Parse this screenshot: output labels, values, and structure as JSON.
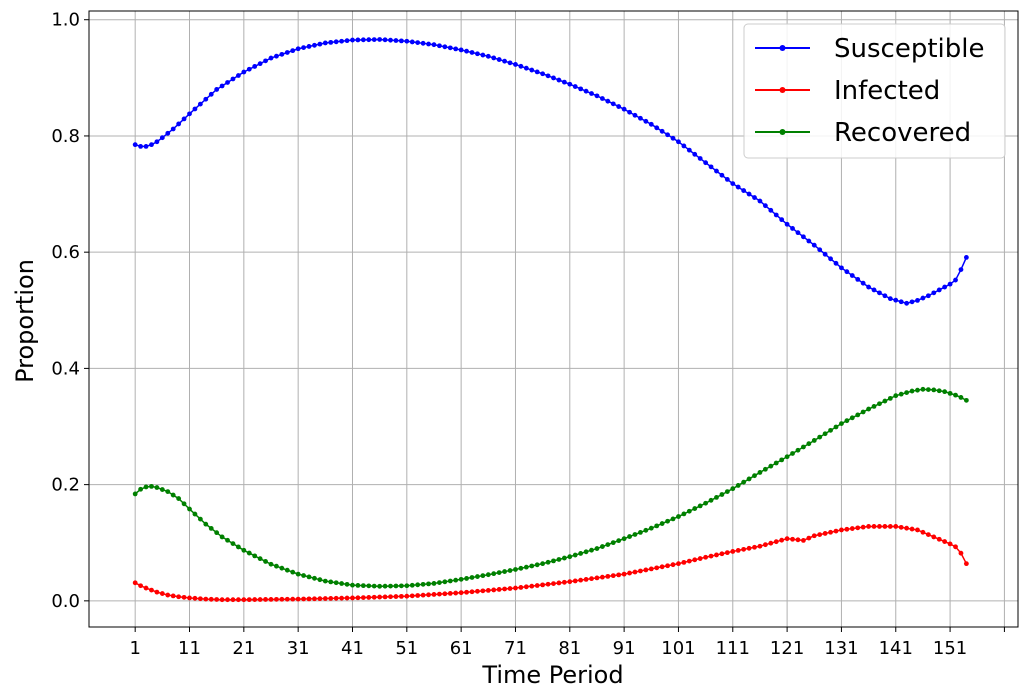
{
  "chart_data": {
    "type": "line",
    "xlabel": "Time Period",
    "ylabel": "Proportion",
    "xlim": [
      -7.5,
      163.5
    ],
    "ylim": [
      -0.045,
      1.015
    ],
    "x_ticks": [
      1,
      11,
      21,
      31,
      41,
      51,
      61,
      71,
      81,
      91,
      101,
      111,
      121,
      131,
      141,
      151,
      161
    ],
    "x_tick_labels": [
      "1",
      "11",
      "21",
      "31",
      "41",
      "51",
      "61",
      "71",
      "81",
      "91",
      "101",
      "111",
      "121",
      "131",
      "141",
      "151",
      ""
    ],
    "y_ticks": [
      0.0,
      0.2,
      0.4,
      0.6,
      0.8,
      1.0
    ],
    "y_tick_labels": [
      "0.0",
      "0.2",
      "0.4",
      "0.6",
      "0.8",
      "1.0"
    ],
    "grid": true,
    "legend_position": "upper right",
    "x_start": 1,
    "x_end": 154,
    "series": [
      {
        "name": "Susceptible",
        "color": "#0000ff",
        "keypoints": [
          [
            1,
            0.785
          ],
          [
            2,
            0.782
          ],
          [
            3,
            0.782
          ],
          [
            4,
            0.785
          ],
          [
            5,
            0.79
          ],
          [
            6,
            0.797
          ],
          [
            8,
            0.812
          ],
          [
            11,
            0.838
          ],
          [
            16,
            0.88
          ],
          [
            21,
            0.91
          ],
          [
            26,
            0.934
          ],
          [
            31,
            0.95
          ],
          [
            36,
            0.96
          ],
          [
            41,
            0.965
          ],
          [
            46,
            0.966
          ],
          [
            51,
            0.963
          ],
          [
            56,
            0.957
          ],
          [
            61,
            0.948
          ],
          [
            66,
            0.937
          ],
          [
            71,
            0.923
          ],
          [
            76,
            0.907
          ],
          [
            81,
            0.889
          ],
          [
            86,
            0.869
          ],
          [
            91,
            0.846
          ],
          [
            96,
            0.82
          ],
          [
            101,
            0.79
          ],
          [
            106,
            0.754
          ],
          [
            111,
            0.718
          ],
          [
            116,
            0.688
          ],
          [
            121,
            0.648
          ],
          [
            126,
            0.612
          ],
          [
            131,
            0.573
          ],
          [
            136,
            0.54
          ],
          [
            140,
            0.52
          ],
          [
            143,
            0.512
          ],
          [
            145,
            0.517
          ],
          [
            147,
            0.525
          ],
          [
            149,
            0.535
          ],
          [
            151,
            0.545
          ],
          [
            152,
            0.552
          ],
          [
            153,
            0.57
          ],
          [
            154,
            0.591
          ]
        ]
      },
      {
        "name": "Infected",
        "color": "#ff0000",
        "keypoints": [
          [
            1,
            0.031
          ],
          [
            2,
            0.026
          ],
          [
            3,
            0.022
          ],
          [
            5,
            0.015
          ],
          [
            7,
            0.01
          ],
          [
            9,
            0.007
          ],
          [
            11,
            0.005
          ],
          [
            14,
            0.003
          ],
          [
            17,
            0.002
          ],
          [
            21,
            0.002
          ],
          [
            31,
            0.003
          ],
          [
            41,
            0.005
          ],
          [
            51,
            0.008
          ],
          [
            61,
            0.014
          ],
          [
            71,
            0.022
          ],
          [
            81,
            0.033
          ],
          [
            91,
            0.046
          ],
          [
            101,
            0.064
          ],
          [
            106,
            0.075
          ],
          [
            111,
            0.085
          ],
          [
            116,
            0.094
          ],
          [
            121,
            0.107
          ],
          [
            124,
            0.104
          ],
          [
            126,
            0.112
          ],
          [
            131,
            0.122
          ],
          [
            136,
            0.128
          ],
          [
            141,
            0.128
          ],
          [
            145,
            0.122
          ],
          [
            148,
            0.11
          ],
          [
            151,
            0.098
          ],
          [
            152,
            0.093
          ],
          [
            153,
            0.082
          ],
          [
            154,
            0.064
          ]
        ]
      },
      {
        "name": "Recovered",
        "color": "#008000",
        "keypoints": [
          [
            1,
            0.184
          ],
          [
            2,
            0.192
          ],
          [
            3,
            0.196
          ],
          [
            4,
            0.197
          ],
          [
            5,
            0.195
          ],
          [
            7,
            0.188
          ],
          [
            9,
            0.176
          ],
          [
            11,
            0.158
          ],
          [
            14,
            0.132
          ],
          [
            17,
            0.11
          ],
          [
            21,
            0.087
          ],
          [
            26,
            0.063
          ],
          [
            31,
            0.046
          ],
          [
            36,
            0.034
          ],
          [
            41,
            0.027
          ],
          [
            46,
            0.025
          ],
          [
            51,
            0.026
          ],
          [
            56,
            0.03
          ],
          [
            61,
            0.037
          ],
          [
            66,
            0.045
          ],
          [
            71,
            0.054
          ],
          [
            76,
            0.064
          ],
          [
            81,
            0.076
          ],
          [
            86,
            0.09
          ],
          [
            91,
            0.107
          ],
          [
            96,
            0.125
          ],
          [
            101,
            0.145
          ],
          [
            106,
            0.168
          ],
          [
            111,
            0.193
          ],
          [
            116,
            0.221
          ],
          [
            121,
            0.248
          ],
          [
            126,
            0.276
          ],
          [
            131,
            0.305
          ],
          [
            136,
            0.33
          ],
          [
            141,
            0.353
          ],
          [
            144,
            0.361
          ],
          [
            146,
            0.364
          ],
          [
            148,
            0.363
          ],
          [
            150,
            0.36
          ],
          [
            152,
            0.354
          ],
          [
            153,
            0.35
          ],
          [
            154,
            0.345
          ]
        ]
      }
    ]
  }
}
